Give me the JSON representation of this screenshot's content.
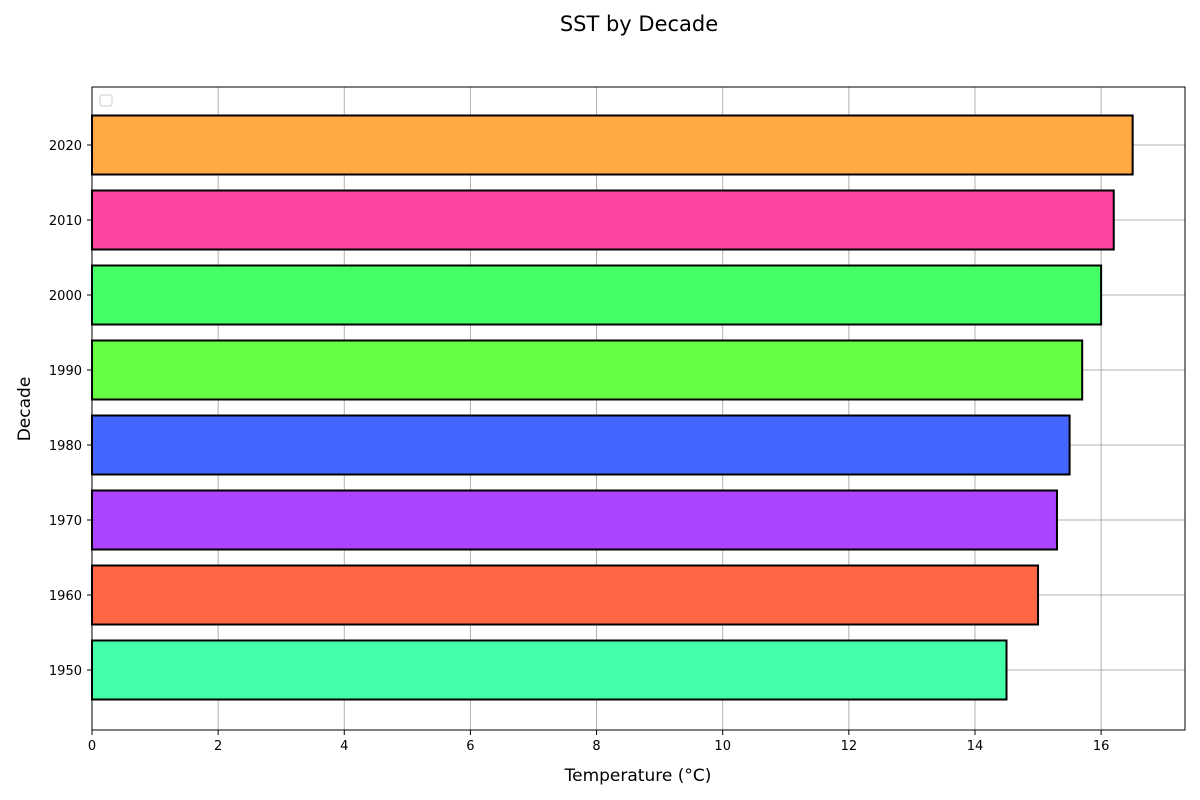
{
  "chart_data": {
    "type": "bar",
    "orientation": "horizontal",
    "title": "SST by Decade",
    "xlabel": "Temperature (°C)",
    "ylabel": "Decade",
    "categories": [
      "1950",
      "1960",
      "1970",
      "1980",
      "1990",
      "2000",
      "2010",
      "2020"
    ],
    "values": [
      14.5,
      15.0,
      15.3,
      15.5,
      15.7,
      16.0,
      16.2,
      16.5
    ],
    "colors": [
      "#44ffaa",
      "#ff6644",
      "#aa44ff",
      "#4466ff",
      "#66ff44",
      "#44ff66",
      "#ff44a0",
      "#ffaa44"
    ],
    "bar_edge_color": "#000000",
    "xlim": [
      0,
      17.33
    ],
    "xticks": [
      "0",
      "2",
      "4",
      "6",
      "8",
      "10",
      "12",
      "14",
      "16"
    ],
    "grid": true,
    "legend": {
      "placement": "top-left",
      "entries": []
    }
  }
}
